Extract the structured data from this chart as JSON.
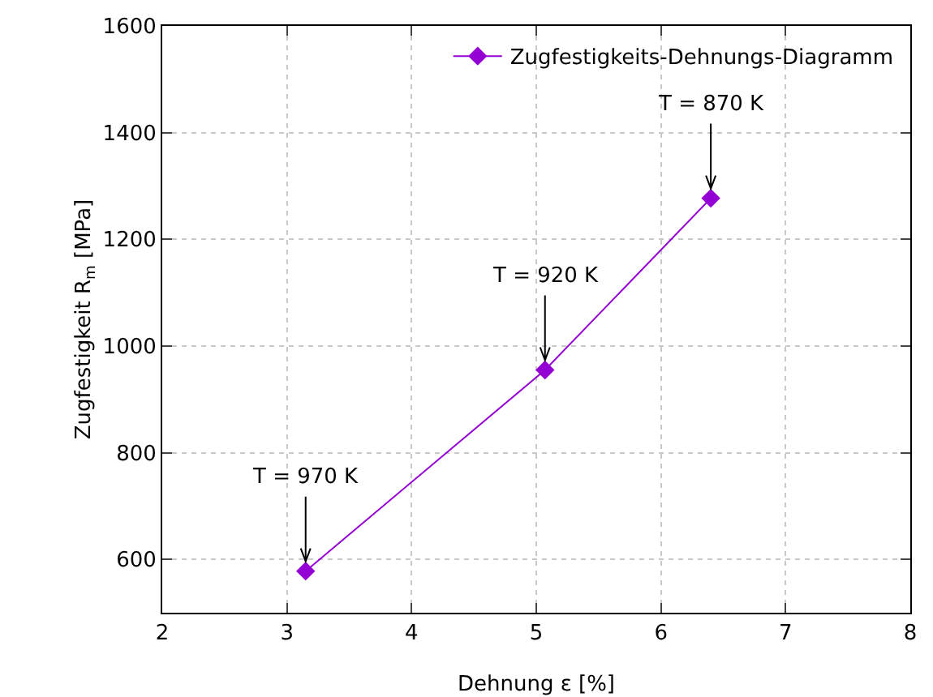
{
  "chart_data": {
    "type": "line",
    "xlabel": "Dehnung ε [%]",
    "ylabel": "Zugfestigkeit R$_{m}$ [MPa]",
    "x": [
      3.15,
      5.07,
      6.4
    ],
    "series": [
      {
        "name": "Zugfestigkeits-Dehnungs-Diagramm",
        "color": "#9400d3",
        "values": [
          578,
          955,
          1277
        ]
      }
    ],
    "xlim": [
      2,
      8
    ],
    "xticks": [
      2,
      3,
      4,
      5,
      6,
      7,
      8
    ],
    "ylim": [
      500,
      1600
    ],
    "yticks": [
      600,
      800,
      1000,
      1200,
      1400,
      1600
    ],
    "annotations": [
      {
        "text": "T = 970 K",
        "x": 3.15,
        "y": 578
      },
      {
        "text": "T = 920 K",
        "x": 5.07,
        "y": 955
      },
      {
        "text": "T = 870 K",
        "x": 6.4,
        "y": 1277
      }
    ],
    "grid": true,
    "legend": "top right",
    "marker": "diamond",
    "line_style": "solid"
  }
}
